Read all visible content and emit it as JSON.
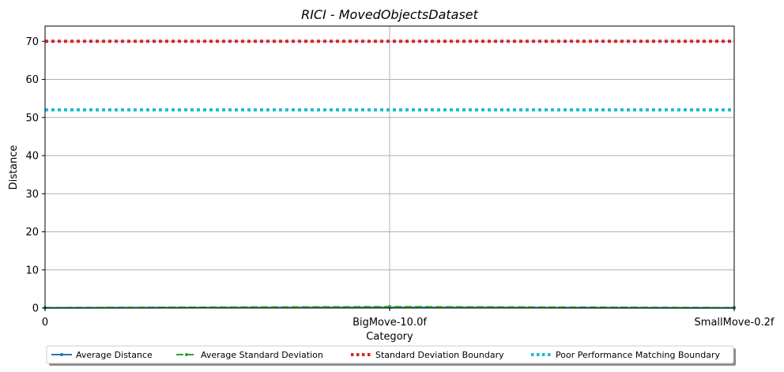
{
  "chart_data": {
    "type": "line",
    "title": "RICI - MovedObjectsDataset",
    "xlabel": "Category",
    "ylabel": "Distance",
    "categories": [
      "0",
      "BigMove-10.0f",
      "SmallMove-0.2f"
    ],
    "ylim": [
      0,
      74
    ],
    "yticks": [
      0,
      10,
      20,
      30,
      40,
      50,
      60,
      70
    ],
    "grid": true,
    "legend_position": "bottom-center",
    "series": [
      {
        "name": "Average Distance",
        "values": [
          0.05,
          0.15,
          0.05
        ],
        "color": "#1f77b4",
        "style": "solid-marker"
      },
      {
        "name": "Average Standard Deviation",
        "values": [
          0.1,
          0.35,
          0.1
        ],
        "color": "#2ca02c",
        "style": "dashed-marker"
      },
      {
        "name": "Standard Deviation Boundary",
        "values": [
          70,
          70,
          70
        ],
        "color": "#d62728",
        "style": "dotted"
      },
      {
        "name": "Poor Performance Matching Boundary",
        "values": [
          52,
          52,
          52
        ],
        "color": "#17becf",
        "style": "dotted"
      }
    ]
  }
}
